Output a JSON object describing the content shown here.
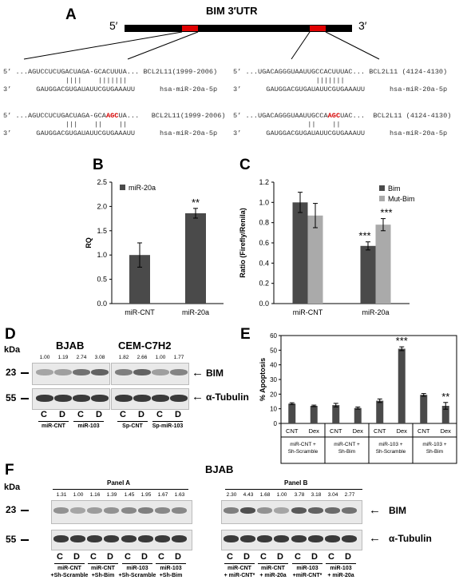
{
  "panelA": {
    "label": "A",
    "utr_title": "BIM 3′UTR",
    "five_prime": "5′",
    "three_prime": "3′",
    "site1": {
      "wt_top": [
        "5’",
        "...AGUCCUCUGACUAGA-GCACUUUA...",
        "BCL2L11(1999-2006)"
      ],
      "wt_pairs": "     ||||    |||||||",
      "wt_bottom": [
        "3’",
        "GAUGGACGUGAUAUUCGUGAAAUU",
        "hsa-miR-20a-5p"
      ],
      "mut_top_pre": "...AGUCCUCUGACUAGA-GCA",
      "mut_red": "AGC",
      "mut_top_post": "UA...",
      "mut_top_label": "BCL2L11(1999-2006)",
      "mut_pairs": "     |||    ||    ||",
      "mut_bottom": [
        "3’",
        "GAUGGACGUGAUAUUCGUGAAAUU",
        "hsa-miR-20a-5p"
      ]
    },
    "site2": {
      "wt_top": [
        "5’",
        "...UGACAGGGUAAUUGCCACUUUAC...",
        "BCL2L11 (4124-4130)"
      ],
      "wt_pairs": "          |||||||",
      "wt_bottom": [
        "3’",
        "GAUGGACGUGAUAUUCGUGAAAUU",
        "hsa-miR-20a-5p"
      ],
      "mut_top_pre": "...UGACAGGGUAAUUGCCA",
      "mut_red": "AGC",
      "mut_top_post": "UAC...",
      "mut_top_label": "BCL2L11 (4124-4130)",
      "mut_pairs": "        ||    ||",
      "mut_bottom": [
        "3’",
        "GAUGGACGUGAUAUUCGUGAAAUU",
        "hsa-miR-20a-5p"
      ]
    }
  },
  "panelB": {
    "label": "B",
    "chart_data": {
      "type": "bar",
      "ylabel": "RQ",
      "ylim": [
        0,
        2.5
      ],
      "yticks": [
        "0.0",
        "0.5",
        "1.0",
        "1.5",
        "2.0",
        "2.5"
      ],
      "categories": [
        "miR-CNT",
        "miR-20a"
      ],
      "series": [
        {
          "name": "miR-20a",
          "values": [
            1.0,
            1.86
          ],
          "errors": [
            0.25,
            0.1
          ]
        }
      ],
      "annotations": [
        "",
        "**"
      ],
      "legend": "top-left",
      "color": "#4a4a4a"
    }
  },
  "panelC": {
    "label": "C",
    "chart_data": {
      "type": "bar",
      "ylabel": "Ratio (Firefly/Renila)",
      "ylim": [
        0,
        1.2
      ],
      "yticks": [
        "0.0",
        "0.2",
        "0.4",
        "0.6",
        "0.8",
        "1.0",
        "1.2"
      ],
      "categories": [
        "miR-CNT",
        "miR-20a"
      ],
      "series": [
        {
          "name": "Bim",
          "values": [
            1.0,
            0.57
          ],
          "errors": [
            0.1,
            0.04
          ],
          "color": "#4a4a4a"
        },
        {
          "name": "Mut-Bim",
          "values": [
            0.87,
            0.78
          ],
          "errors": [
            0.12,
            0.06
          ],
          "color": "#aaaaaa"
        }
      ],
      "annotations": [
        [
          "",
          ""
        ],
        [
          "***",
          "***"
        ]
      ],
      "legend": "top-right"
    }
  },
  "panelD": {
    "label": "D",
    "kda": "kDa",
    "mw": [
      "23",
      "55"
    ],
    "cell_lines": [
      "BJAB",
      "CEM-C7H2"
    ],
    "values_left": [
      "1.00",
      "1.19",
      "2.74",
      "3.08"
    ],
    "values_right": [
      "1.82",
      "2.66",
      "1.00",
      "1.77"
    ],
    "lanes_left": [
      "C",
      "D",
      "C",
      "D"
    ],
    "lanes_right": [
      "C",
      "D",
      "C",
      "D"
    ],
    "groups": [
      "miR-CNT",
      "miR-103",
      "Sp-CNT",
      "Sp-miR-103"
    ],
    "bim": "BIM",
    "tubulin": "α-Tubulin",
    "arrow": "←"
  },
  "panelE": {
    "label": "E",
    "chart_data": {
      "type": "bar",
      "ylabel": "% Apoptosis",
      "ylim": [
        0,
        60
      ],
      "yticks": [
        "0",
        "10",
        "20",
        "30",
        "40",
        "50",
        "60"
      ],
      "categories": [
        "CNT",
        "Dex",
        "CNT",
        "Dex",
        "CNT",
        "Dex",
        "CNT",
        "Dex"
      ],
      "values": [
        13.5,
        12,
        12.5,
        10.5,
        15.5,
        51,
        19.5,
        12
      ],
      "errors": [
        0.6,
        0.5,
        1.2,
        0.7,
        1.2,
        1.3,
        0.9,
        2.3
      ],
      "annotations": [
        "",
        "",
        "",
        "",
        "",
        "***",
        "",
        "**"
      ],
      "groups": [
        "miR-CNT +\nSh-Scramble",
        "miR-CNT +\nSh-Bim",
        "miR-103 +\nSh-Scramble",
        "miR-103 +\nSh-Bim"
      ],
      "color": "#4a4a4a"
    }
  },
  "panelF": {
    "label": "F",
    "title": "BJAB",
    "kda": "kDa",
    "mw": [
      "23",
      "55"
    ],
    "panel_a": "Panel A",
    "panel_b": "Panel B",
    "values_a": [
      "1.31",
      "1.00",
      "1.16",
      "1.39",
      "1.45",
      "1.95",
      "1.67",
      "1.63"
    ],
    "values_b": [
      "2.30",
      "4.43",
      "1.68",
      "1.00",
      "3.78",
      "3.18",
      "3.04",
      "2.77"
    ],
    "lanes": [
      "C",
      "D",
      "C",
      "D",
      "C",
      "D",
      "C",
      "D"
    ],
    "groups_a": [
      "miR-CNT\n+Sh-Scramble",
      "miR-CNT\n+Sh-Bim",
      "miR-103\n+Sh-Scramble",
      "miR-103\n+Sh-Bim"
    ],
    "groups_b": [
      "miR-CNT\n+ miR-CNT*",
      "miR-CNT\n+ miR-20a",
      "miR-103\n+miR-CNT*",
      "miR-103\n+ miR-20a"
    ],
    "bim": "BIM",
    "tubulin": "α-Tubulin",
    "arrow": "←"
  }
}
